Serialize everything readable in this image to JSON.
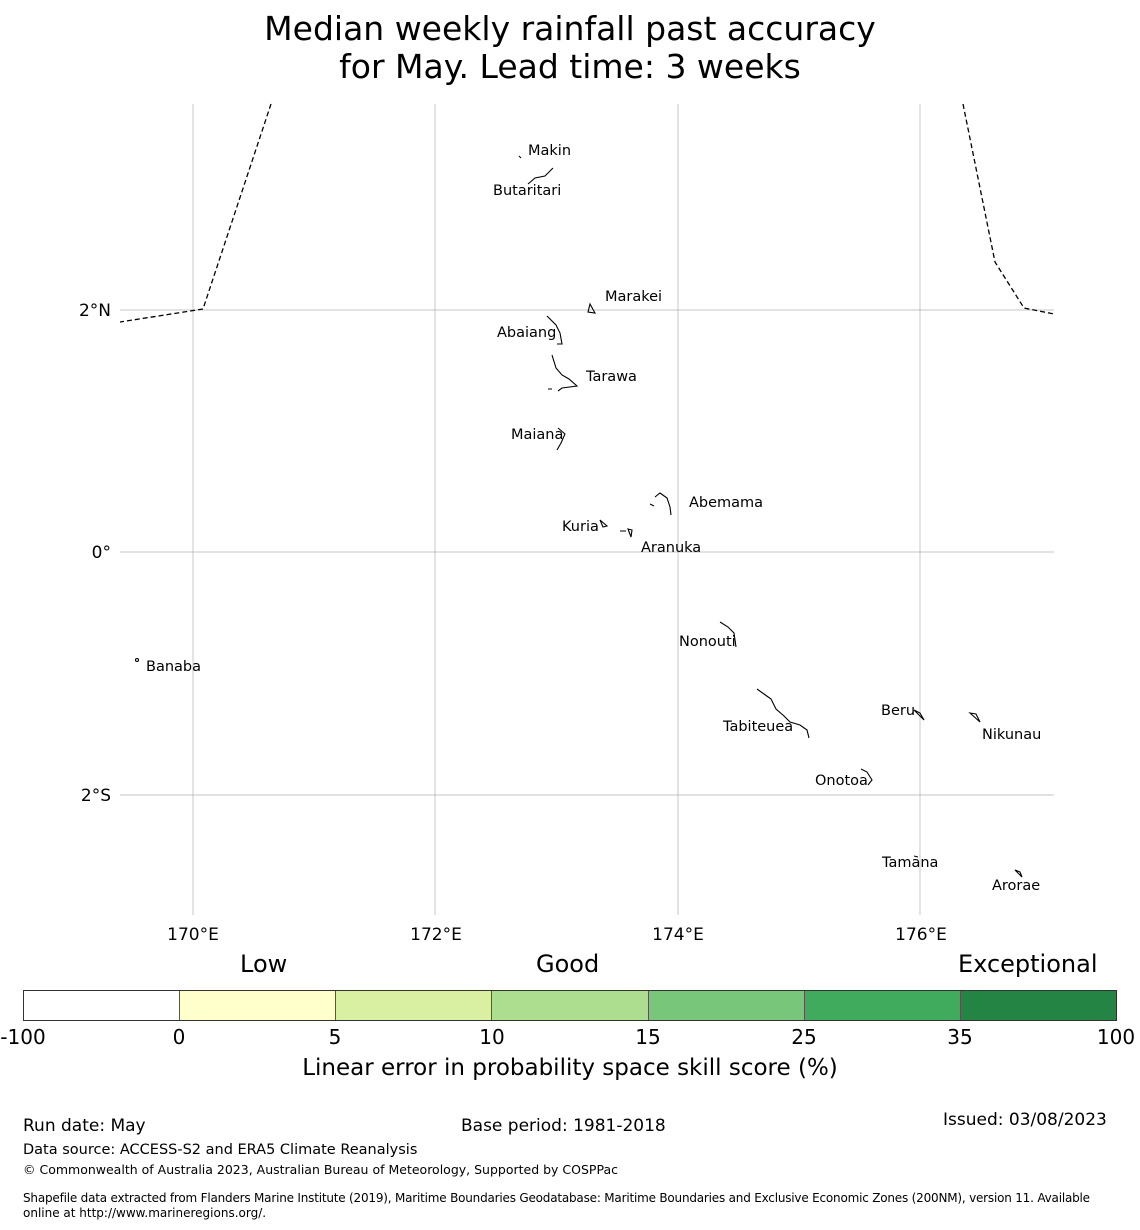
{
  "title": {
    "line1": "Median weekly rainfall past accuracy",
    "line2": "for May. Lead time: 3 weeks"
  },
  "map": {
    "lon_ticks": [
      "170°E",
      "172°E",
      "174°E",
      "176°E"
    ],
    "lat_ticks": [
      "2°N",
      "0°",
      "2°S"
    ],
    "islands": [
      {
        "name": "Makin"
      },
      {
        "name": "Butaritari"
      },
      {
        "name": "Marakei"
      },
      {
        "name": "Abaiang"
      },
      {
        "name": "Tarawa"
      },
      {
        "name": "Maiana"
      },
      {
        "name": "Abemama"
      },
      {
        "name": "Kuria"
      },
      {
        "name": "Aranuka"
      },
      {
        "name": "Nonouti"
      },
      {
        "name": "Banaba"
      },
      {
        "name": "Beru"
      },
      {
        "name": "Tabiteuea"
      },
      {
        "name": "Nikunau"
      },
      {
        "name": "Onotoa"
      },
      {
        "name": "Tamana"
      },
      {
        "name": "Arorae"
      }
    ]
  },
  "legend": {
    "categories": [
      "Low",
      "Good",
      "Exceptional"
    ],
    "ticks": [
      "-100",
      "0",
      "5",
      "10",
      "15",
      "25",
      "35",
      "100"
    ],
    "colors": [
      "#ffffff",
      "#ffffcc",
      "#d9f0a3",
      "#addd8e",
      "#78c679",
      "#41ab5d",
      "#238443"
    ],
    "label": "Linear error in probability space skill score (%)"
  },
  "footer": {
    "run_date": "Run date: May",
    "base_period": "Base period: 1981-2018",
    "issued": "Issued: 03/08/2023",
    "data_source": "Data source: ACCESS-S2 and ERA5 Climate Reanalysis",
    "copyright": "© Commonwealth of Australia 2023, Australian Bureau of Meteorology, Supported by COSPPac",
    "shapefile_line1": "Shapefile data extracted from Flanders Marine Institute (2019), Maritime Boundaries Geodatabase: Maritime Boundaries and Exclusive Economic Zones (200NM), version 11. Available",
    "shapefile_line2": "online at http://www.marineregions.org/."
  }
}
